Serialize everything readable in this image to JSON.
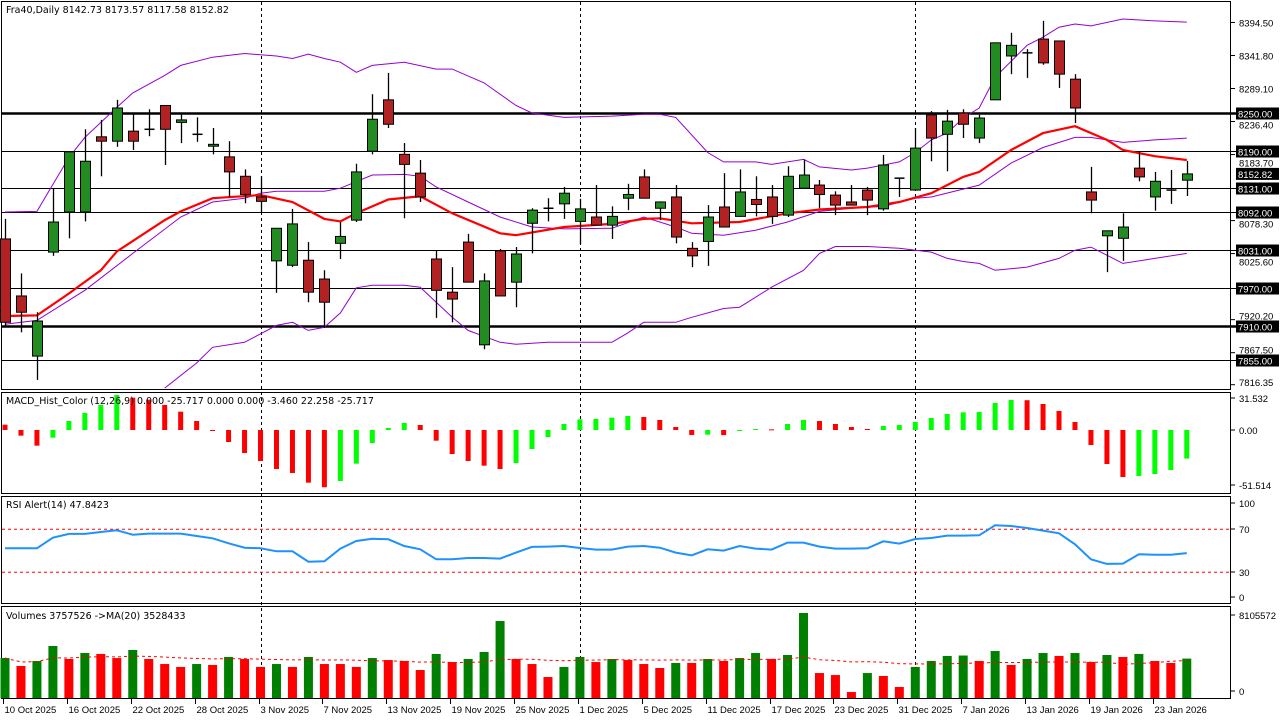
{
  "main": {
    "title": "Fra40,Daily  8142.73 8173.57 8117.58 8152.82",
    "symbol": "Fra40",
    "timeframe": "Daily",
    "colors": {
      "bull": "#228B22",
      "bear": "#B22222",
      "ma": "#FF0000",
      "bands": "#9400D3",
      "level": "#000000"
    },
    "candles_ohlc": [
      [
        8049,
        8081,
        7911,
        7916
      ],
      [
        7958,
        7994,
        7900,
        7932
      ],
      [
        7862,
        7932,
        7824,
        7918
      ],
      [
        8028,
        8129,
        8022,
        8076
      ],
      [
        8092,
        8188,
        8050,
        8188
      ],
      [
        8092,
        8224,
        8077,
        8173
      ],
      [
        8212,
        8239,
        8149,
        8205
      ],
      [
        8205,
        8271,
        8196,
        8258
      ],
      [
        8221,
        8248,
        8191,
        8205
      ],
      [
        8224,
        8256,
        8213,
        8224
      ],
      [
        8262,
        8262,
        8167,
        8224
      ],
      [
        8235,
        8248,
        8202,
        8239
      ],
      [
        8216,
        8243,
        8204,
        8216
      ],
      [
        8197,
        8226,
        8184,
        8200
      ],
      [
        8180,
        8205,
        8116,
        8156
      ],
      [
        8149,
        8160,
        8106,
        8120
      ],
      [
        8116,
        8149,
        8090,
        8109
      ],
      [
        8014,
        8066,
        7963,
        8066
      ],
      [
        8007,
        8097,
        8004,
        8073
      ],
      [
        8015,
        8044,
        7948,
        7964
      ],
      [
        7985,
        7999,
        7907,
        7948
      ],
      [
        8042,
        8076,
        8017,
        8053
      ],
      [
        8079,
        8169,
        8076,
        8156
      ],
      [
        8189,
        8280,
        8184,
        8240
      ],
      [
        8271,
        8314,
        8226,
        8232
      ],
      [
        8184,
        8202,
        8082,
        8168
      ],
      [
        8154,
        8175,
        8108,
        8116
      ],
      [
        8017,
        8031,
        7923,
        7967
      ],
      [
        7964,
        8004,
        7916,
        7953
      ],
      [
        8044,
        8057,
        7980,
        7980
      ],
      [
        7880,
        7994,
        7873,
        7982
      ],
      [
        8030,
        8033,
        7958,
        7958
      ],
      [
        7980,
        8036,
        7940,
        8025
      ],
      [
        8074,
        8098,
        8026,
        8095
      ],
      [
        8098,
        8114,
        8077,
        8098
      ],
      [
        8105,
        8132,
        8081,
        8122
      ],
      [
        8077,
        8113,
        8041,
        8097
      ],
      [
        8084,
        8135,
        8071,
        8071
      ],
      [
        8071,
        8101,
        8049,
        8085
      ],
      [
        8114,
        8137,
        8095,
        8120
      ],
      [
        8148,
        8160,
        8114,
        8114
      ],
      [
        8098,
        8109,
        8079,
        8108
      ],
      [
        8116,
        8135,
        8042,
        8052
      ],
      [
        8034,
        8044,
        8004,
        8022
      ],
      [
        8045,
        8103,
        8006,
        8084
      ],
      [
        8100,
        8154,
        8068,
        8068
      ],
      [
        8085,
        8160,
        8085,
        8124
      ],
      [
        8112,
        8149,
        8085,
        8104
      ],
      [
        8116,
        8135,
        8073,
        8085
      ],
      [
        8087,
        8165,
        8084,
        8149
      ],
      [
        8130,
        8176,
        8130,
        8151
      ],
      [
        8135,
        8143,
        8098,
        8120
      ],
      [
        8119,
        8125,
        8087,
        8103
      ],
      [
        8108,
        8135,
        8103,
        8103
      ],
      [
        8127,
        8132,
        8087,
        8111
      ],
      [
        8097,
        8183,
        8094,
        8167
      ],
      [
        8146,
        8146,
        8116,
        8146
      ],
      [
        8127,
        8226,
        8127,
        8194
      ],
      [
        8247,
        8253,
        8173,
        8210
      ],
      [
        8216,
        8255,
        8157,
        8237
      ],
      [
        8250,
        8256,
        8210,
        8232
      ],
      [
        8210,
        8247,
        8202,
        8242
      ],
      [
        8271,
        8362,
        8271,
        8362
      ],
      [
        8341,
        8378,
        8312,
        8358
      ],
      [
        8346,
        8352,
        8306,
        8346
      ],
      [
        8368,
        8397,
        8327,
        8330
      ],
      [
        8365,
        8365,
        8290,
        8312
      ],
      [
        8304,
        8312,
        8234,
        8258
      ],
      [
        8124,
        8164,
        8090,
        8111
      ],
      [
        8054,
        8062,
        7996,
        8062
      ],
      [
        8050,
        8090,
        8014,
        8068
      ],
      [
        8162,
        8188,
        8141,
        8148
      ],
      [
        8116,
        8156,
        8094,
        8141
      ],
      [
        8127,
        8159,
        8105,
        8127
      ],
      [
        8142.73,
        8173.57,
        8117.58,
        8152.82
      ]
    ],
    "moving_average": [
      [
        0,
        7926
      ],
      [
        2,
        7927
      ],
      [
        4,
        7962
      ],
      [
        6,
        7999
      ],
      [
        7,
        8029
      ],
      [
        10,
        8079
      ],
      [
        11,
        8093
      ],
      [
        13,
        8114
      ],
      [
        16,
        8119
      ],
      [
        18,
        8108
      ],
      [
        20,
        8081
      ],
      [
        21,
        8077
      ],
      [
        22,
        8090
      ],
      [
        24,
        8112
      ],
      [
        26,
        8117
      ],
      [
        28,
        8090
      ],
      [
        31,
        8058
      ],
      [
        32,
        8055
      ],
      [
        35,
        8068
      ],
      [
        38,
        8073
      ],
      [
        40,
        8081
      ],
      [
        41,
        8082
      ],
      [
        43,
        8074
      ],
      [
        46,
        8076
      ],
      [
        49,
        8090
      ],
      [
        51,
        8096
      ],
      [
        54,
        8100
      ],
      [
        56,
        8108
      ],
      [
        58,
        8122
      ],
      [
        60,
        8148
      ],
      [
        61,
        8156
      ],
      [
        63,
        8191
      ],
      [
        65,
        8218
      ],
      [
        67,
        8229
      ],
      [
        69,
        8207
      ],
      [
        70,
        8191
      ],
      [
        72,
        8181
      ],
      [
        74,
        8175
      ]
    ],
    "bollinger_upper": [
      [
        0,
        8092
      ],
      [
        2,
        8093
      ],
      [
        4,
        8179
      ],
      [
        5,
        8211
      ],
      [
        7,
        8259
      ],
      [
        8,
        8282
      ],
      [
        10,
        8310
      ],
      [
        11,
        8326
      ],
      [
        13,
        8339
      ],
      [
        15,
        8345
      ],
      [
        17,
        8341
      ],
      [
        18,
        8337
      ],
      [
        19,
        8344
      ],
      [
        20,
        8337
      ],
      [
        21,
        8331
      ],
      [
        22,
        8315
      ],
      [
        23,
        8326
      ],
      [
        25,
        8331
      ],
      [
        27,
        8320
      ],
      [
        28,
        8320
      ],
      [
        30,
        8298
      ],
      [
        32,
        8262
      ],
      [
        33,
        8250
      ],
      [
        35,
        8243
      ],
      [
        38,
        8245
      ],
      [
        40,
        8248
      ],
      [
        41,
        8248
      ],
      [
        42,
        8243
      ],
      [
        44,
        8187
      ],
      [
        45,
        8172
      ],
      [
        47,
        8172
      ],
      [
        48,
        8168
      ],
      [
        50,
        8176
      ],
      [
        51,
        8164
      ],
      [
        53,
        8159
      ],
      [
        54,
        8162
      ],
      [
        56,
        8172
      ],
      [
        57,
        8187
      ],
      [
        58,
        8207
      ],
      [
        59,
        8218
      ],
      [
        60,
        8242
      ],
      [
        61,
        8258
      ],
      [
        62,
        8307
      ],
      [
        64,
        8358
      ],
      [
        65,
        8371
      ],
      [
        66,
        8387
      ],
      [
        67,
        8392
      ],
      [
        68,
        8389
      ],
      [
        70,
        8400
      ],
      [
        72,
        8397
      ],
      [
        74,
        8395
      ]
    ],
    "bollinger_middle": [
      [
        0,
        7913
      ],
      [
        2,
        7919
      ],
      [
        5,
        7967
      ],
      [
        8,
        8026
      ],
      [
        11,
        8084
      ],
      [
        13,
        8108
      ],
      [
        15,
        8114
      ],
      [
        16,
        8122
      ],
      [
        17,
        8125
      ],
      [
        20,
        8125
      ],
      [
        21,
        8130
      ],
      [
        23,
        8151
      ],
      [
        25,
        8152
      ],
      [
        26,
        8149
      ],
      [
        27,
        8132
      ],
      [
        29,
        8108
      ],
      [
        31,
        8084
      ],
      [
        33,
        8068
      ],
      [
        35,
        8065
      ],
      [
        38,
        8066
      ],
      [
        40,
        8084
      ],
      [
        42,
        8068
      ],
      [
        43,
        8058
      ],
      [
        45,
        8055
      ],
      [
        47,
        8063
      ],
      [
        49,
        8076
      ],
      [
        51,
        8093
      ],
      [
        53,
        8098
      ],
      [
        55,
        8101
      ],
      [
        57,
        8114
      ],
      [
        58,
        8116
      ],
      [
        61,
        8135
      ],
      [
        63,
        8170
      ],
      [
        65,
        8195
      ],
      [
        67,
        8211
      ],
      [
        68,
        8211
      ],
      [
        70,
        8203
      ],
      [
        72,
        8207
      ],
      [
        74,
        8210
      ]
    ],
    "bollinger_lower": [
      [
        10,
        7811
      ],
      [
        12,
        7851
      ],
      [
        13,
        7876
      ],
      [
        15,
        7884
      ],
      [
        17,
        7911
      ],
      [
        18,
        7916
      ],
      [
        19,
        7903
      ],
      [
        20,
        7908
      ],
      [
        21,
        7931
      ],
      [
        22,
        7971
      ],
      [
        23,
        7975
      ],
      [
        25,
        7975
      ],
      [
        26,
        7972
      ],
      [
        28,
        7924
      ],
      [
        29,
        7903
      ],
      [
        31,
        7884
      ],
      [
        32,
        7881
      ],
      [
        34,
        7884
      ],
      [
        38,
        7884
      ],
      [
        39,
        7899
      ],
      [
        40,
        7916
      ],
      [
        42,
        7916
      ],
      [
        43,
        7924
      ],
      [
        45,
        7938
      ],
      [
        46,
        7940
      ],
      [
        48,
        7972
      ],
      [
        50,
        7999
      ],
      [
        51,
        8026
      ],
      [
        52,
        8037
      ],
      [
        54,
        8037
      ],
      [
        56,
        8034
      ],
      [
        58,
        8028
      ],
      [
        59,
        8018
      ],
      [
        60,
        8013
      ],
      [
        61,
        8010
      ],
      [
        62,
        7999
      ],
      [
        64,
        8004
      ],
      [
        66,
        8018
      ],
      [
        67,
        8031
      ],
      [
        68,
        8036
      ],
      [
        70,
        8010
      ],
      [
        72,
        8018
      ],
      [
        74,
        8026
      ]
    ],
    "levels": [
      {
        "value": 8250,
        "label": "8250.00",
        "thick": true
      },
      {
        "value": 8190,
        "label": "8190.00",
        "thick": false
      },
      {
        "value": 8131,
        "label": "8131.00",
        "thick": false
      },
      {
        "value": 8092,
        "label": "8092.00",
        "thick": false
      },
      {
        "value": 8031,
        "label": "8031.00",
        "thick": false
      },
      {
        "value": 7970,
        "label": "7970.00",
        "thick": false
      },
      {
        "value": 7910,
        "label": "7910.00",
        "thick": true
      },
      {
        "value": 7855,
        "label": "7855.00",
        "thick": false
      }
    ],
    "current_price": {
      "value": 8152.82,
      "label": "8152.82"
    },
    "price_axis_labels": [
      "8394.50",
      "8341.80",
      "8289.10",
      "8236.40",
      "8183.70",
      "8078.30",
      "8025.60",
      "7920.20",
      "7867.50",
      "7816.35"
    ],
    "separators_at_bar": [
      16,
      36,
      57
    ]
  },
  "macd": {
    "title": "MACD_Hist_Color (12,26,9)  0.000 -25.717 0.000 0.000 -3.460 22.258 -25.717",
    "colors": {
      "up": "#00FF00",
      "down": "#FF0000"
    },
    "axis_labels": [
      "31.532",
      "0.00",
      "-51.514"
    ],
    "values": [
      4.8,
      -5.1,
      -14.1,
      -6.9,
      8.1,
      15.3,
      22.5,
      31.5,
      29.1,
      27.3,
      22.5,
      16.5,
      8.1,
      -0.6,
      -10.8,
      -20.7,
      -27.9,
      -35.1,
      -38.7,
      -47.4,
      -51.5,
      -45.9,
      -30.3,
      -11.7,
      1.8,
      6.3,
      4.5,
      -9.6,
      -21.6,
      -27.9,
      -32.1,
      -35.1,
      -29.7,
      -17.1,
      -6.3,
      5.4,
      9.6,
      9.9,
      11.1,
      12.6,
      11.7,
      9.0,
      2.7,
      -4.5,
      -4.2,
      -4.6,
      -0.9,
      0.9,
      0.6,
      5.4,
      9.0,
      8.1,
      5.4,
      2.7,
      0.9,
      3.6,
      4.5,
      7.2,
      10.8,
      14.4,
      15.9,
      16.2,
      24.3,
      27.0,
      26.8,
      23.4,
      17.1,
      7.2,
      -13.5,
      -30.6,
      -42.3,
      -41.4,
      -39.6,
      -36.0,
      -25.717
    ]
  },
  "rsi": {
    "title": "RSI Alert(14) 47.8423",
    "color": "#1E90FF",
    "levels": [
      70,
      30
    ],
    "axis_labels": [
      "100",
      "70",
      "30",
      "0"
    ],
    "values": [
      52.3,
      52.3,
      52.3,
      62.2,
      65.7,
      65.7,
      67.5,
      69.1,
      65.0,
      66.0,
      66.0,
      66.0,
      63.8,
      61.6,
      57.0,
      52.9,
      52.3,
      49.5,
      49.5,
      39.9,
      40.2,
      52.0,
      59.1,
      61.3,
      60.7,
      54.5,
      51.4,
      42.1,
      42.1,
      43.3,
      43.3,
      42.7,
      48.3,
      53.6,
      53.9,
      54.5,
      52.6,
      51.1,
      51.1,
      53.9,
      54.5,
      52.9,
      48.3,
      45.8,
      51.4,
      50.2,
      54.5,
      52.0,
      51.1,
      57.6,
      57.6,
      53.9,
      52.0,
      52.0,
      52.3,
      58.8,
      56.7,
      61.0,
      61.9,
      64.1,
      64.1,
      64.4,
      73.7,
      73.1,
      71.2,
      68.8,
      66.3,
      56.0,
      42.1,
      37.8,
      38.1,
      46.7,
      46.4,
      46.4,
      47.8423
    ]
  },
  "volumes": {
    "title": "Volumes 3757526  ->MA(20) 3528433",
    "colors": {
      "up": "#008000",
      "down": "#FF0000",
      "ma": "#FF0000"
    },
    "axis_labels": [
      "8105572",
      "0"
    ],
    "max": 8105572,
    "values": [
      3810000,
      3050000,
      3530000,
      4960000,
      3720000,
      4290000,
      4200000,
      3810000,
      4580000,
      3720000,
      3240000,
      2960000,
      3240000,
      3150000,
      3910000,
      3720000,
      2960000,
      3240000,
      2960000,
      3910000,
      3240000,
      3240000,
      2960000,
      3810000,
      3620000,
      3530000,
      2670000,
      4200000,
      3430000,
      3720000,
      4390000,
      7340000,
      3720000,
      3240000,
      2000000,
      2960000,
      3910000,
      3430000,
      3720000,
      3620000,
      3240000,
      2860000,
      3340000,
      3340000,
      3720000,
      3530000,
      3810000,
      4290000,
      3720000,
      4100000,
      8105572,
      2380000,
      2190000,
      570000,
      2380000,
      2100000,
      1050000,
      2960000,
      3530000,
      4010000,
      4050000,
      3530000,
      4480000,
      3150000,
      3720000,
      4290000,
      4010000,
      4290000,
      3430000,
      4100000,
      3910000,
      4200000,
      3530000,
      3340000,
      3757526
    ]
  },
  "time_axis": {
    "labels": [
      "10 Oct 2025",
      "16 Oct 2025",
      "22 Oct 2025",
      "28 Oct 2025",
      "3 Nov 2025",
      "7 Nov 2025",
      "13 Nov 2025",
      "19 Nov 2025",
      "25 Nov 2025",
      "1 Dec 2025",
      "5 Dec 2025",
      "11 Dec 2025",
      "17 Dec 2025",
      "23 Dec 2025",
      "31 Dec 2025",
      "7 Jan 2026",
      "13 Jan 2026",
      "19 Jan 2026",
      "23 Jan 2026"
    ]
  }
}
